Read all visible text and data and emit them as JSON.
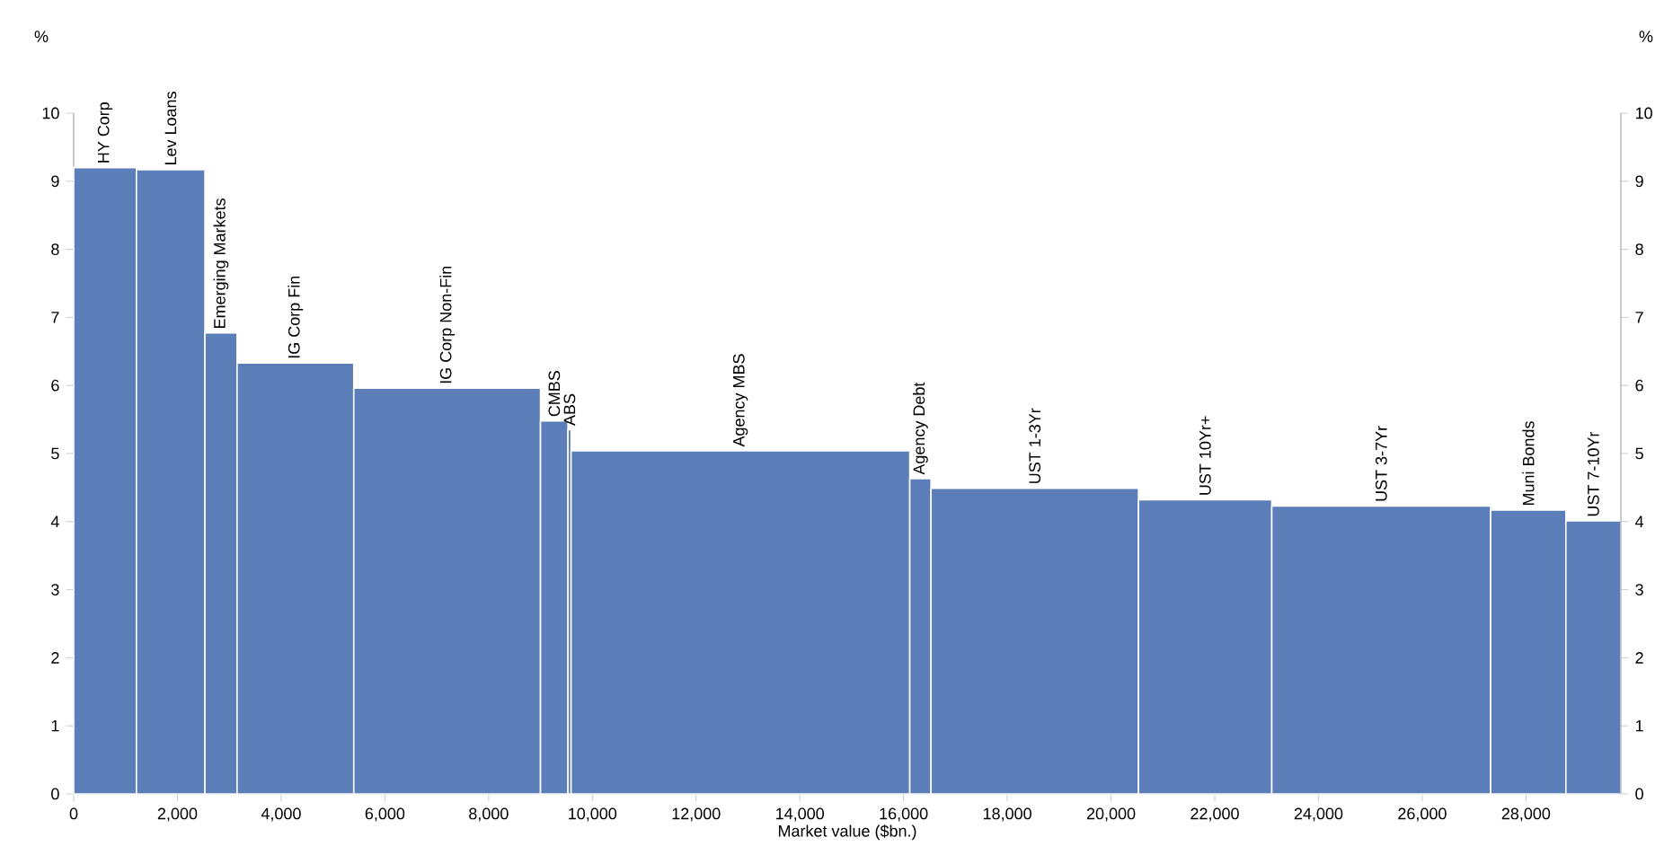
{
  "chart_data": {
    "type": "histogram",
    "xlabel": "Market value ($bn.)",
    "ylabel": "%",
    "y2label": "%",
    "color": "#5b7db8",
    "bins": [
      0,
      1210,
      2530,
      3150,
      5400,
      9000,
      9530,
      9590,
      16120,
      16530,
      20530,
      23100,
      27320,
      28770,
      29830
    ],
    "values": [
      9.2,
      9.17,
      6.77,
      6.33,
      5.96,
      5.48,
      5.35,
      5.04,
      4.63,
      4.49,
      4.32,
      4.23,
      4.17,
      4.01
    ],
    "xlim": [
      0,
      29830
    ],
    "xticks": [
      0,
      {
        "value": 2000,
        "label": "2,000"
      },
      {
        "value": 4000,
        "label": "4,000"
      },
      {
        "value": 6000,
        "label": "6,000"
      },
      {
        "value": 8000,
        "label": "8,000"
      },
      {
        "value": 10000,
        "label": "10,000"
      },
      {
        "value": 12000,
        "label": "12,000"
      },
      {
        "value": 14000,
        "label": "14,000"
      },
      {
        "value": 16000,
        "label": "16,000"
      },
      {
        "value": 18000,
        "label": "18,000"
      },
      {
        "value": 20000,
        "label": "20,000"
      },
      {
        "value": 22000,
        "label": "22,000"
      },
      {
        "value": 24000,
        "label": "24,000"
      },
      {
        "value": 26000,
        "label": "26,000"
      },
      {
        "value": 28000,
        "label": "28,000"
      }
    ],
    "ylim": [
      0,
      10
    ],
    "yticks": [
      0,
      1,
      2,
      3,
      4,
      5,
      6,
      7,
      8,
      9,
      10
    ],
    "y2lim": [
      0,
      10
    ],
    "y2ticks": [
      0,
      1,
      2,
      3,
      4,
      5,
      6,
      7,
      8,
      9,
      10
    ],
    "annotations": [
      {
        "text": "HY Corp",
        "x": 605,
        "y": 9.2
      },
      {
        "text": "Lev Loans",
        "x": 1870,
        "y": 9.17
      },
      {
        "text": "Emerging Markets",
        "x": 2840,
        "y": 6.77
      },
      {
        "text": "IG Corp Fin",
        "x": 4275,
        "y": 6.33
      },
      {
        "text": "IG Corp Non-Fin",
        "x": 7200,
        "y": 5.96
      },
      {
        "text": "CMBS",
        "x": 9265,
        "y": 5.48
      },
      {
        "text": "ABS",
        "x": 9560,
        "y": 5.35
      },
      {
        "text": "Agency MBS",
        "x": 12855,
        "y": 5.04
      },
      {
        "text": "Agency Debt",
        "x": 16325,
        "y": 4.63
      },
      {
        "text": "UST 1-3Yr",
        "x": 18530,
        "y": 4.49
      },
      {
        "text": "UST 10Yr+",
        "x": 21815,
        "y": 4.32
      },
      {
        "text": "UST 3-7Yr",
        "x": 25210,
        "y": 4.23
      },
      {
        "text": "Muni Bonds",
        "x": 28045,
        "y": 4.17
      },
      {
        "text": "UST 7-10Yr",
        "x": 29300,
        "y": 4.01
      }
    ]
  }
}
